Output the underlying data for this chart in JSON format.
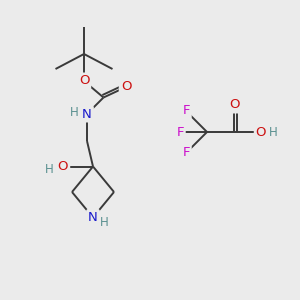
{
  "bg_color": "#ebebeb",
  "bond_color": "#3a3a3a",
  "bond_lw": 1.4,
  "atom_colors": {
    "N": "#1a1acc",
    "O": "#cc1010",
    "F": "#cc10cc",
    "H": "#5a9090"
  },
  "font_size": 9.5
}
